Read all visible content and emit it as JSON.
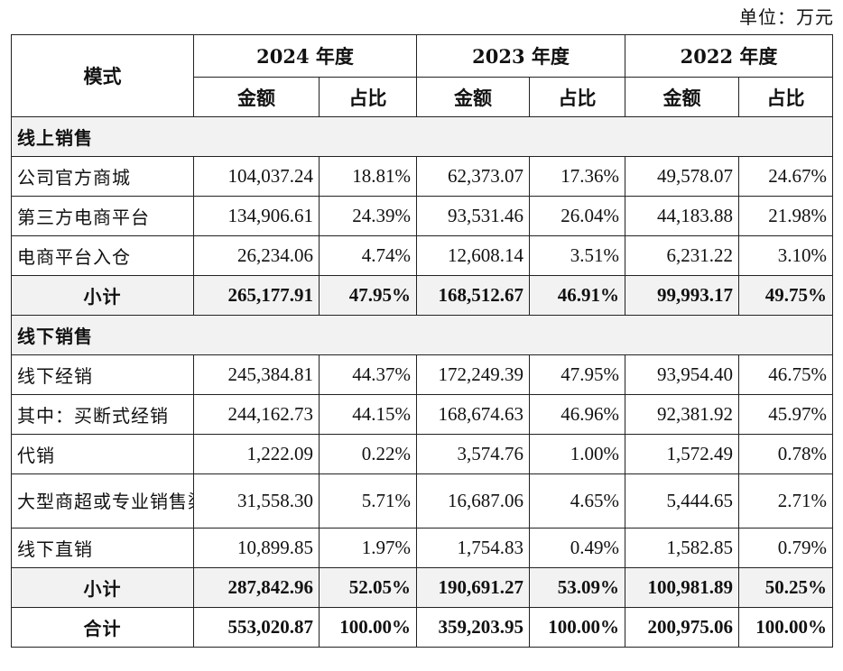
{
  "unit_label": "单位：万元",
  "header": {
    "mode": "模式",
    "years": [
      "2024 年度",
      "2023 年度",
      "2022 年度"
    ],
    "amount": "金额",
    "ratio": "占比"
  },
  "sections": [
    {
      "title": "线上销售",
      "rows": [
        {
          "label": "公司官方商城",
          "values": [
            "104,037.24",
            "18.81%",
            "62,373.07",
            "17.36%",
            "49,578.07",
            "24.67%"
          ]
        },
        {
          "label": "第三方电商平台",
          "values": [
            "134,906.61",
            "24.39%",
            "93,531.46",
            "26.04%",
            "44,183.88",
            "21.98%"
          ]
        },
        {
          "label": "电商平台入仓",
          "values": [
            "26,234.06",
            "4.74%",
            "12,608.14",
            "3.51%",
            "6,231.22",
            "3.10%"
          ]
        }
      ],
      "subtotal": {
        "label": "小计",
        "values": [
          "265,177.91",
          "47.95%",
          "168,512.67",
          "46.91%",
          "99,993.17",
          "49.75%"
        ]
      }
    },
    {
      "title": "线下销售",
      "rows": [
        {
          "label": "线下经销",
          "values": [
            "245,384.81",
            "44.37%",
            "172,249.39",
            "47.95%",
            "93,954.40",
            "46.75%"
          ]
        },
        {
          "label": "其中：买断式经销",
          "values": [
            "244,162.73",
            "44.15%",
            "168,674.63",
            "46.96%",
            "92,381.92",
            "45.97%"
          ]
        },
        {
          "label": "代销",
          "values": [
            "1,222.09",
            "0.22%",
            "3,574.76",
            "1.00%",
            "1,572.49",
            "0.78%"
          ]
        },
        {
          "label": "大型商超或专业销售渠道",
          "values": [
            "31,558.30",
            "5.71%",
            "16,687.06",
            "4.65%",
            "5,444.65",
            "2.71%"
          ]
        },
        {
          "label": "线下直销",
          "values": [
            "10,899.85",
            "1.97%",
            "1,754.83",
            "0.49%",
            "1,582.85",
            "0.79%"
          ]
        }
      ],
      "subtotal": {
        "label": "小计",
        "values": [
          "287,842.96",
          "52.05%",
          "190,691.27",
          "53.09%",
          "100,981.89",
          "50.25%"
        ]
      }
    }
  ],
  "total": {
    "label": "合计",
    "values": [
      "553,020.87",
      "100.00%",
      "359,203.95",
      "100.00%",
      "200,975.06",
      "100.00%"
    ]
  }
}
